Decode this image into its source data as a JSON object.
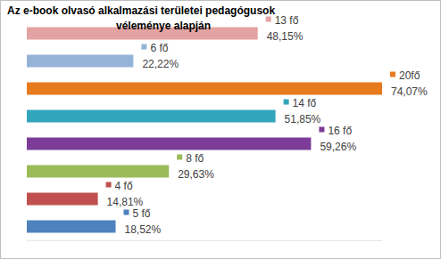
{
  "chart_data": {
    "type": "bar",
    "orientation": "horizontal",
    "title": "Az e-book olvasó alkalmazási területei pedagógusok\nvéleménye alapján",
    "categories": [
      null,
      null,
      null,
      null,
      null,
      null,
      null,
      null
    ],
    "values": [
      13,
      6,
      20,
      14,
      16,
      8,
      4,
      5
    ],
    "value_labels": [
      "13 fő",
      "6 fő",
      "20fő",
      "14 fő",
      "16 fő",
      "8 fő",
      "4 fő",
      "5 fő"
    ],
    "shares": [
      48.15,
      22.22,
      74.07,
      51.85,
      59.26,
      29.63,
      14.81,
      18.52
    ],
    "share_labels": [
      "48,15%",
      "22,22%",
      "74,07%",
      "51,85%",
      "59,26%",
      "29,63%",
      "14,81%",
      "18,52%"
    ],
    "colors": [
      "#e3a3a3",
      "#95b3d7",
      "#e87a1e",
      "#31a5bb",
      "#7d3c98",
      "#9bbb59",
      "#c0504d",
      "#4f81bd"
    ],
    "xlim": [
      0,
      20
    ],
    "data_labels": true,
    "tick_labels": false,
    "grid": false
  }
}
